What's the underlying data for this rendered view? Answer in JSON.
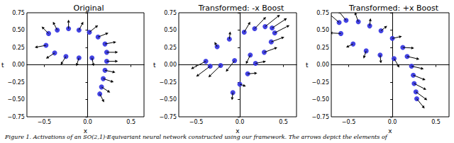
{
  "caption": "Figure 1. Activations of an SO(2,1)-Equivariant neural network constructed using our framework. The arrows depict the elements of",
  "chart_data": [
    {
      "type": "quiver",
      "title": "Original",
      "x_label": "x",
      "y_label": "t",
      "xlim": [
        -0.7,
        0.65
      ],
      "ylim": [
        -0.75,
        0.75
      ],
      "xticks": [
        {
          "value": -0.5,
          "label": "−0.5"
        },
        {
          "value": 0,
          "label": "0.0"
        },
        {
          "value": 0.5,
          "label": "0.5"
        }
      ],
      "yticks": [
        {
          "value": -0.75,
          "label": "−0.75"
        },
        {
          "value": -0.5,
          "label": "−0.50"
        },
        {
          "value": -0.25,
          "label": "−0.25"
        },
        {
          "value": 0,
          "label": "0.00"
        },
        {
          "value": 0.25,
          "label": "0.25"
        },
        {
          "value": 0.5,
          "label": "0.50"
        },
        {
          "value": 0.75,
          "label": "0.75"
        }
      ],
      "series": [
        {
          "type": "scatter",
          "color": "#2f2fe0",
          "marker": "circle",
          "x": [
            -0.45,
            -0.35,
            -0.22,
            -0.1,
            0.02,
            0.12,
            0.2,
            0.22,
            0.05,
            -0.1,
            -0.25,
            -0.38,
            -0.48,
            0.22,
            0.2,
            0.18,
            0.16,
            0.14
          ],
          "y": [
            0.45,
            0.5,
            0.52,
            0.5,
            0.47,
            0.4,
            0.3,
            0.18,
            0.1,
            0.1,
            0.12,
            0.17,
            0.28,
            0.05,
            -0.08,
            -0.2,
            -0.32,
            -0.42
          ]
        },
        {
          "type": "quiver",
          "color": "#000000",
          "x": [
            -0.45,
            -0.35,
            -0.22,
            -0.1,
            0.02,
            0.12,
            0.2,
            0.22,
            0.05,
            -0.1,
            -0.25,
            -0.38,
            -0.48,
            0.22,
            0.2,
            0.18,
            0.16,
            0.14
          ],
          "y": [
            0.45,
            0.5,
            0.52,
            0.5,
            0.47,
            0.4,
            0.3,
            0.18,
            0.1,
            0.1,
            0.12,
            0.17,
            0.28,
            0.05,
            -0.08,
            -0.2,
            -0.32,
            -0.42
          ],
          "u": [
            -0.08,
            -0.05,
            0,
            0.05,
            0.1,
            0.12,
            0.13,
            0.13,
            0.02,
            -0.03,
            -0.06,
            -0.1,
            -0.13,
            0.13,
            0.12,
            0.12,
            0.1,
            0.05
          ],
          "v": [
            0.1,
            0.12,
            0.13,
            0.12,
            0.1,
            0.06,
            0.03,
            0,
            -0.12,
            -0.12,
            -0.12,
            -0.08,
            -0.03,
            0,
            -0.03,
            -0.05,
            -0.08,
            -0.12
          ]
        }
      ]
    },
    {
      "type": "quiver",
      "title": "Transformed: -x Boost",
      "x_label": "x",
      "y_label": "t",
      "xlim": [
        -0.7,
        0.65
      ],
      "ylim": [
        -0.75,
        0.75
      ],
      "xticks": [
        {
          "value": -0.5,
          "label": "−0.5"
        },
        {
          "value": 0,
          "label": "0.0"
        },
        {
          "value": 0.5,
          "label": "0.5"
        }
      ],
      "yticks": [
        {
          "value": -0.75,
          "label": "−0.75"
        },
        {
          "value": -0.5,
          "label": "−0.50"
        },
        {
          "value": -0.25,
          "label": "−0.25"
        },
        {
          "value": 0,
          "label": "0.00"
        },
        {
          "value": 0.25,
          "label": "0.25"
        },
        {
          "value": 0.5,
          "label": "0.50"
        },
        {
          "value": 0.75,
          "label": "0.75"
        }
      ],
      "series": [
        {
          "type": "scatter",
          "color": "#2f2fe0",
          "marker": "circle",
          "x": [
            -0.26,
            -0.12,
            0.05,
            0.17,
            0.29,
            0.37,
            0.4,
            0.36,
            0.12,
            -0.06,
            -0.22,
            -0.34,
            -0.39,
            0.28,
            0.18,
            0.09,
            0,
            -0.08
          ],
          "y": [
            0.26,
            0.37,
            0.47,
            0.52,
            0.55,
            0.53,
            0.46,
            0.33,
            0.14,
            0.06,
            -0.01,
            -0.02,
            0.05,
            0.18,
            0.02,
            -0.13,
            -0.28,
            -0.4
          ]
        },
        {
          "type": "quiver",
          "color": "#000000",
          "x": [
            -0.26,
            -0.12,
            0.05,
            0.17,
            0.29,
            0.37,
            0.4,
            0.36,
            0.12,
            -0.06,
            -0.22,
            -0.34,
            -0.39,
            0.28,
            0.18,
            0.09,
            0,
            -0.08
          ],
          "y": [
            0.26,
            0.37,
            0.47,
            0.52,
            0.55,
            0.53,
            0.46,
            0.33,
            0.14,
            0.06,
            -0.01,
            -0.02,
            0.05,
            0.18,
            0.02,
            -0.13,
            -0.28,
            -0.4
          ],
          "u": [
            -0.03,
            0.01,
            0.07,
            0.13,
            0.17,
            0.17,
            0.17,
            0.15,
            -0.05,
            -0.1,
            -0.14,
            -0.16,
            -0.17,
            0.15,
            0.12,
            0.11,
            0.07,
            -0.01
          ],
          "v": [
            0.07,
            0.11,
            0.15,
            0.17,
            0.17,
            0.14,
            0.11,
            0.07,
            -0.13,
            -0.16,
            -0.17,
            -0.15,
            -0.11,
            0.07,
            0.03,
            0.01,
            -0.03,
            -0.11
          ]
        }
      ]
    },
    {
      "type": "quiver",
      "title": "Transformed: +x Boost",
      "x_label": "x",
      "y_label": "t",
      "xlim": [
        -0.7,
        0.65
      ],
      "ylim": [
        -0.75,
        0.75
      ],
      "xticks": [
        {
          "value": -0.5,
          "label": "−0.5"
        },
        {
          "value": 0,
          "label": "0.0"
        },
        {
          "value": 0.5,
          "label": "0.5"
        }
      ],
      "yticks": [
        {
          "value": -0.75,
          "label": "−0.75"
        },
        {
          "value": -0.5,
          "label": "−0.50"
        },
        {
          "value": -0.25,
          "label": "−0.25"
        },
        {
          "value": 0,
          "label": "0.00"
        },
        {
          "value": 0.25,
          "label": "0.25"
        },
        {
          "value": 0.5,
          "label": "0.50"
        },
        {
          "value": 0.75,
          "label": "0.75"
        }
      ],
      "series": [
        {
          "type": "scatter",
          "color": "#2f2fe0",
          "marker": "circle",
          "x": [
            -0.61,
            -0.53,
            -0.39,
            -0.26,
            -0.13,
            0,
            0.12,
            0.17,
            0.02,
            -0.14,
            -0.3,
            -0.45,
            -0.59,
            0.22,
            0.24,
            0.25,
            0.27,
            0.28
          ],
          "y": [
            0.61,
            0.64,
            0.62,
            0.56,
            0.49,
            0.38,
            0.25,
            0.12,
            0.09,
            0.14,
            0.2,
            0.3,
            0.45,
            -0.02,
            -0.15,
            -0.27,
            -0.39,
            -0.49
          ]
        },
        {
          "type": "quiver",
          "color": "#000000",
          "x": [
            -0.61,
            -0.53,
            -0.39,
            -0.26,
            -0.13,
            0,
            0.12,
            0.17,
            0.02,
            -0.14,
            -0.3,
            -0.45,
            -0.59,
            0.22,
            0.24,
            0.25,
            0.27,
            0.28
          ],
          "y": [
            0.61,
            0.64,
            0.62,
            0.56,
            0.49,
            0.38,
            0.25,
            0.12,
            0.09,
            0.14,
            0.2,
            0.3,
            0.45,
            -0.02,
            -0.15,
            -0.27,
            -0.39,
            -0.49
          ],
          "u": [
            -0.12,
            -0.09,
            -0.04,
            0.01,
            0.07,
            0.11,
            0.13,
            0.14,
            0.06,
            0.01,
            -0.03,
            -0.08,
            -0.13,
            0.14,
            0.14,
            0.14,
            0.13,
            0.09
          ],
          "v": [
            0.13,
            0.14,
            0.14,
            0.11,
            0.07,
            0.03,
            -0.01,
            -0.04,
            -0.13,
            -0.12,
            -0.11,
            -0.05,
            0.01,
            -0.04,
            -0.07,
            -0.09,
            -0.12,
            -0.14
          ]
        }
      ]
    }
  ]
}
